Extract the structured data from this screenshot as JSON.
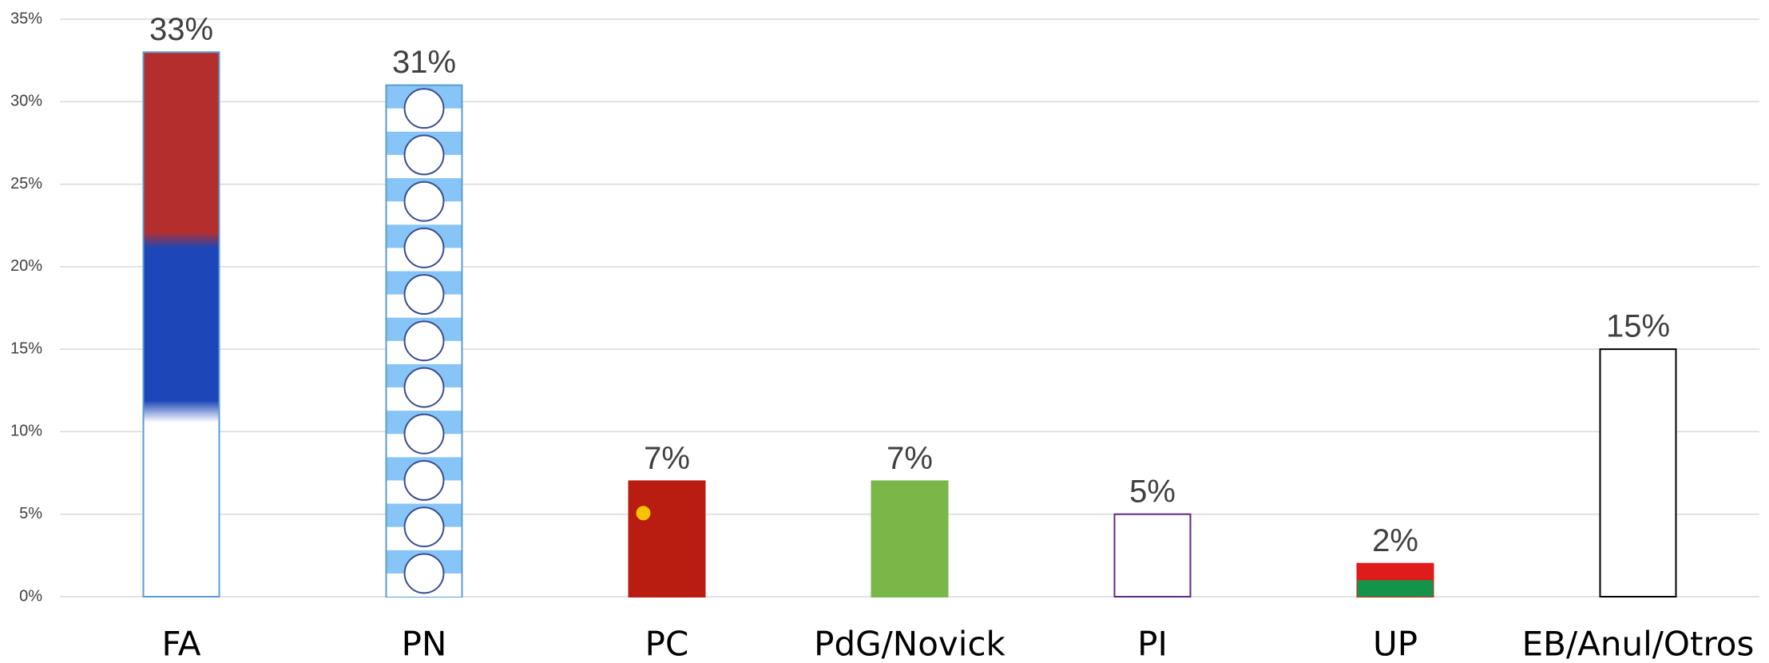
{
  "chart_data": {
    "type": "bar",
    "categories": [
      "FA",
      "PN",
      "PC",
      "PdG/Novick",
      "PI",
      "UP",
      "EB/Anul/Otros"
    ],
    "values": [
      33,
      31,
      7,
      7,
      5,
      2,
      15
    ],
    "value_labels": [
      "33%",
      "31%",
      "7%",
      "7%",
      "5%",
      "2%",
      "15%"
    ],
    "colors": [
      "#1d47b8",
      "#86c5f5",
      "#b91c10",
      "#7ab648",
      "#ffffff",
      "#e01b1b",
      "#ffffff"
    ],
    "edgecolors": [
      "#5b9bd5",
      "#5b9bd5",
      "#b91c10",
      "#7ab648",
      "#5b2a86",
      "#e01b1b",
      "#000000"
    ],
    "ylim": [
      0,
      35
    ],
    "yticks": [
      {
        "value": 0,
        "label": "0%"
      },
      {
        "value": 5,
        "label": "5%"
      },
      {
        "value": 10,
        "label": "10%"
      },
      {
        "value": 15,
        "label": "15%"
      },
      {
        "value": 20,
        "label": "20%"
      },
      {
        "value": 25,
        "label": "25%"
      },
      {
        "value": 30,
        "label": "30%"
      },
      {
        "value": 35,
        "label": "35%"
      }
    ],
    "grid": true
  }
}
